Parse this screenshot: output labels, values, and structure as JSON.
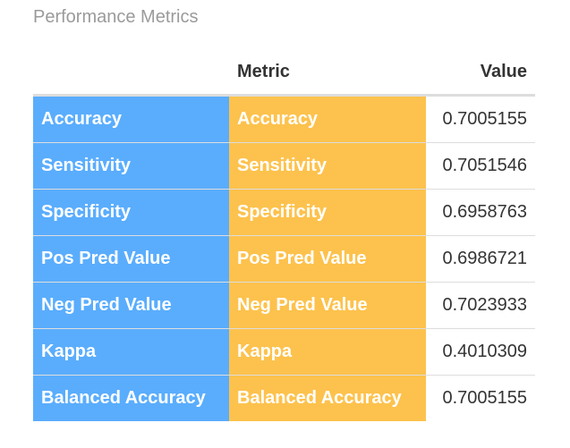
{
  "caption": "Performance Metrics",
  "colors": {
    "rowname_bg": "#5aadfd",
    "metric_bg": "#fdc24d",
    "text_on_color": "#ffffff",
    "header_text": "#333333"
  },
  "table": {
    "headers": {
      "rowname": "",
      "metric": "Metric",
      "value": "Value"
    },
    "rows": [
      {
        "rowname": "Accuracy",
        "metric": "Accuracy",
        "value": "0.7005155"
      },
      {
        "rowname": "Sensitivity",
        "metric": "Sensitivity",
        "value": "0.7051546"
      },
      {
        "rowname": "Specificity",
        "metric": "Specificity",
        "value": "0.6958763"
      },
      {
        "rowname": "Pos Pred Value",
        "metric": "Pos Pred Value",
        "value": "0.6986721"
      },
      {
        "rowname": "Neg Pred Value",
        "metric": "Neg Pred Value",
        "value": "0.7023933"
      },
      {
        "rowname": "Kappa",
        "metric": "Kappa",
        "value": "0.4010309"
      },
      {
        "rowname": "Balanced Accuracy",
        "metric": "Balanced Accuracy",
        "value": "0.7005155"
      }
    ]
  }
}
